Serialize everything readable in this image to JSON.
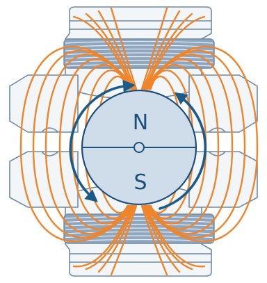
{
  "diagram": {
    "rotor": {
      "north_label": "N",
      "south_label": "S"
    },
    "colors": {
      "stator_fill": "#f3f6f9",
      "stator_stroke": "#6f8aa6",
      "rotor_fill": "#cfdce9",
      "rotor_stroke": "#1e4f7a",
      "coil": "#8ea6bf",
      "coil_dark": "#6f8aa6",
      "field_lines": "#f0842a",
      "rotation_arrows": "#1a5b8c"
    },
    "icons": {
      "stator": "stator-housing-icon",
      "coil": "coil-winding-icon",
      "rotor": "magnet-rotor-icon",
      "arrow": "rotation-arrow-icon"
    }
  }
}
